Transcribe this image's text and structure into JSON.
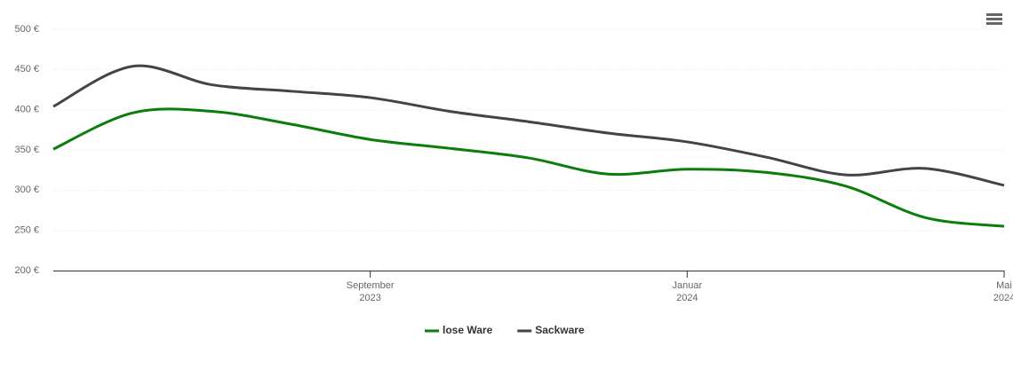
{
  "chart_data": {
    "type": "line",
    "x": [
      "2023-05",
      "2023-06",
      "2023-07",
      "2023-08",
      "2023-09",
      "2023-10",
      "2023-11",
      "2023-12",
      "2024-01",
      "2024-02",
      "2024-03",
      "2024-04",
      "2024-05"
    ],
    "series": [
      {
        "name": "lose Ware",
        "color": "#0a7d0a",
        "values": [
          351,
          396,
          398,
          382,
          363,
          352,
          340,
          320,
          326,
          322,
          305,
          266,
          255
        ]
      },
      {
        "name": "Sackware",
        "color": "#434348",
        "values": [
          404,
          454,
          431,
          423,
          415,
          398,
          385,
          371,
          360,
          341,
          319,
          327,
          306
        ]
      }
    ],
    "xlim": [
      "2023-05",
      "2024-05"
    ],
    "xticks": [
      {
        "value": "2023-09",
        "label": [
          "September",
          "2023"
        ]
      },
      {
        "value": "2024-01",
        "label": [
          "Januar",
          "2024"
        ]
      },
      {
        "value": "2024-05",
        "label": [
          "Mai",
          "2024"
        ]
      }
    ],
    "ylim": [
      200,
      500
    ],
    "yticks": [
      {
        "value": 200,
        "label": "200 €"
      },
      {
        "value": 250,
        "label": "250 €"
      },
      {
        "value": 300,
        "label": "300 €"
      },
      {
        "value": 350,
        "label": "350 €"
      },
      {
        "value": 400,
        "label": "400 €"
      },
      {
        "value": 450,
        "label": "450 €"
      },
      {
        "value": 500,
        "label": "500 €"
      }
    ],
    "grid": true,
    "legend": "bottom"
  }
}
